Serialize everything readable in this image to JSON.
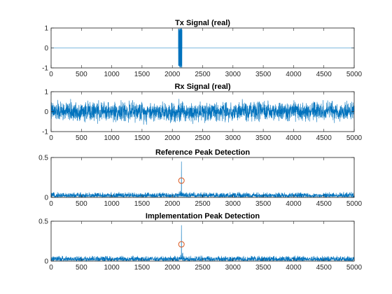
{
  "colors": {
    "series": "#0072BD",
    "marker": "#D95319",
    "axes": "#262626"
  },
  "chart_data": [
    {
      "type": "line",
      "title": "Tx Signal (real)",
      "xlim": [
        0,
        5000
      ],
      "ylim": [
        -1,
        1
      ],
      "xticks": [
        0,
        500,
        1000,
        1500,
        2000,
        2500,
        3000,
        3500,
        4000,
        4500,
        5000
      ],
      "yticks": [
        -1,
        0,
        1
      ],
      "series": [
        {
          "kind": "burst",
          "baseline": 0,
          "burst_start": 2100,
          "burst_end": 2160,
          "amplitude": 1,
          "noise_amplitude": 0
        }
      ]
    },
    {
      "type": "line",
      "title": "Rx Signal (real)",
      "xlim": [
        0,
        5000
      ],
      "ylim": [
        -1,
        1
      ],
      "xticks": [
        0,
        500,
        1000,
        1500,
        2000,
        2500,
        3000,
        3500,
        4000,
        4500,
        5000
      ],
      "yticks": [
        -1,
        0,
        1
      ],
      "series": [
        {
          "kind": "noise",
          "baseline": 0,
          "noise_amplitude": 0.7,
          "burst_start": 2100,
          "burst_end": 2160
        }
      ]
    },
    {
      "type": "line",
      "title": "Reference Peak Detection",
      "xlim": [
        0,
        5000
      ],
      "ylim": [
        0,
        0.5
      ],
      "xticks": [
        0,
        500,
        1000,
        1500,
        2000,
        2500,
        3000,
        3500,
        4000,
        4500,
        5000
      ],
      "yticks": [
        0,
        0.5
      ],
      "series": [
        {
          "kind": "peak",
          "baseline": 0,
          "noise_amplitude": 0.07,
          "peak_x": 2150,
          "peak_y": 0.45
        }
      ],
      "marker": {
        "x": 2150,
        "y": 0.21
      }
    },
    {
      "type": "line",
      "title": "Implementation Peak Detection",
      "xlim": [
        0,
        5000
      ],
      "ylim": [
        0,
        0.5
      ],
      "xticks": [
        0,
        500,
        1000,
        1500,
        2000,
        2500,
        3000,
        3500,
        4000,
        4500,
        5000
      ],
      "yticks": [
        0,
        0.5
      ],
      "series": [
        {
          "kind": "peak",
          "baseline": 0,
          "noise_amplitude": 0.07,
          "peak_x": 2150,
          "peak_y": 0.45
        }
      ],
      "marker": {
        "x": 2150,
        "y": 0.21
      }
    }
  ]
}
